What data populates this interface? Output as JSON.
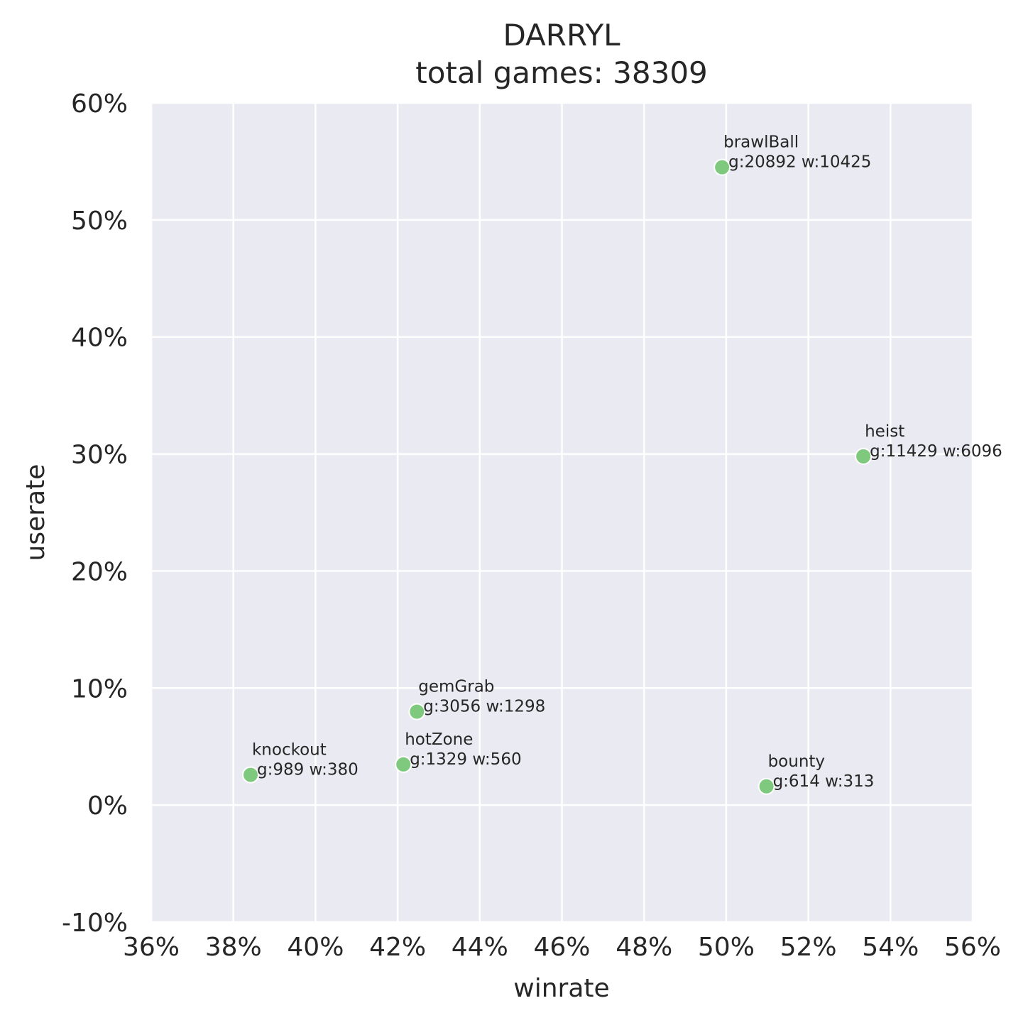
{
  "chart_data": {
    "type": "scatter",
    "title": "DARRYL",
    "subtitle": "total games: 38309",
    "xlabel": "winrate",
    "ylabel": "userate",
    "xlim": [
      36,
      56
    ],
    "ylim": [
      -10,
      60
    ],
    "x_ticks": [
      36,
      38,
      40,
      42,
      44,
      46,
      48,
      50,
      52,
      54,
      56
    ],
    "y_ticks": [
      -10,
      0,
      10,
      20,
      30,
      40,
      50,
      60
    ],
    "x_tick_labels": [
      "36%",
      "38%",
      "40%",
      "42%",
      "44%",
      "46%",
      "48%",
      "50%",
      "52%",
      "54%",
      "56%"
    ],
    "y_tick_labels": [
      "-10%",
      "0%",
      "10%",
      "20%",
      "30%",
      "40%",
      "50%",
      "60%"
    ],
    "grid": true,
    "colors": {
      "background": "#eaeaf2",
      "grid": "#ffffff",
      "point": "#7fc97f",
      "point_edge": "#ffffff"
    },
    "points": [
      {
        "name": "brawlBall",
        "info": "g:20892 w:10425",
        "x": 49.9,
        "y": 54.5
      },
      {
        "name": "heist",
        "info": "g:11429 w:6096",
        "x": 53.34,
        "y": 29.8
      },
      {
        "name": "gemGrab",
        "info": "g:3056 w:1298",
        "x": 42.47,
        "y": 7.98
      },
      {
        "name": "hotZone",
        "info": "g:1329 w:560",
        "x": 42.14,
        "y": 3.47
      },
      {
        "name": "knockout",
        "info": "g:989 w:380",
        "x": 38.42,
        "y": 2.58
      },
      {
        "name": "bounty",
        "info": "g:614 w:313",
        "x": 50.98,
        "y": 1.6
      }
    ]
  }
}
